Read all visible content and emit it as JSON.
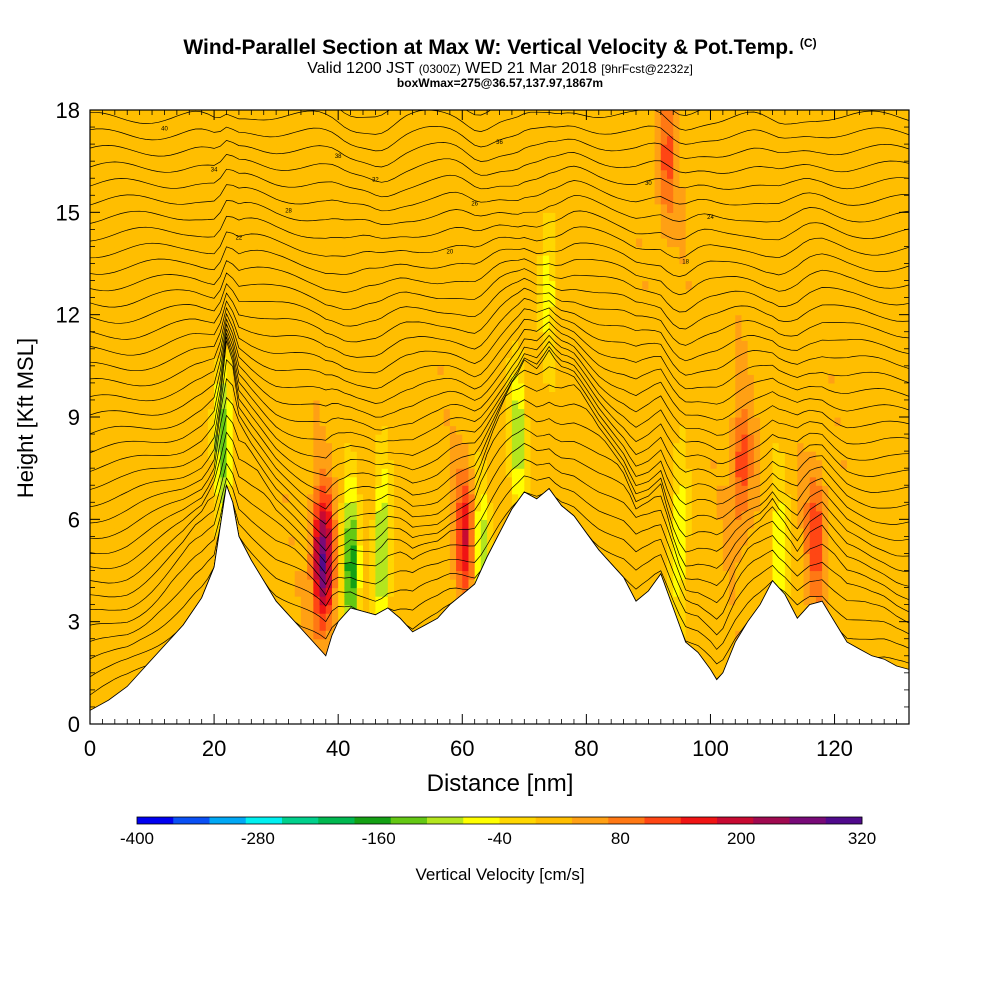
{
  "chart_data": {
    "type": "heatmap",
    "title": "Wind-Parallel Section at Max W: Vertical Velocity & Pot.Temp.",
    "title_mark": "(C)",
    "subtitle_main": "Valid 1200 JST",
    "subtitle_utc": "(0300Z)",
    "subtitle_date": "WED 21 Mar 2018",
    "subtitle_fcst": "[9hrFcst@2232z]",
    "subtitle2": "boxWmax=275@36.57,137.97,1867m",
    "xlabel": "Distance [nm]",
    "ylabel": "Height [Kft MSL]",
    "xlim": [
      0,
      132
    ],
    "ylim": [
      0,
      18
    ],
    "xticks": [
      0,
      20,
      40,
      60,
      80,
      100,
      120
    ],
    "yticks": [
      0,
      3,
      6,
      9,
      12,
      15,
      18
    ],
    "colorbar": {
      "label": "Vertical Velocity [cm/s]",
      "tick_labels": [
        "-400",
        "-280",
        "-160",
        "-40",
        "80",
        "200",
        "320"
      ],
      "tick_values": [
        -400,
        -280,
        -160,
        -40,
        80,
        200,
        320
      ],
      "range": [
        -400,
        320
      ],
      "colors": [
        "#0000f0",
        "#0a50f5",
        "#00a8f5",
        "#00f0f0",
        "#00d08c",
        "#00b850",
        "#14a014",
        "#64c814",
        "#b4e61e",
        "#ffff00",
        "#ffd700",
        "#ffbe00",
        "#ffa014",
        "#ff7814",
        "#ff4614",
        "#f01414",
        "#c80a32",
        "#a00a50",
        "#780a78",
        "#500a8c"
      ]
    },
    "terrain": {
      "x": [
        0,
        3,
        6,
        9,
        12,
        15,
        18,
        20,
        21,
        22,
        23,
        24,
        26,
        28,
        30,
        32,
        34,
        36,
        37,
        38,
        39,
        40,
        42,
        44,
        46,
        48,
        50,
        52,
        54,
        56,
        58,
        60,
        62,
        64,
        66,
        68,
        70,
        72,
        74,
        76,
        78,
        80,
        82,
        84,
        86,
        88,
        90,
        92,
        94,
        96,
        98,
        100,
        101,
        102,
        104,
        106,
        108,
        110,
        112,
        114,
        116,
        118,
        120,
        122,
        124,
        126,
        128,
        130,
        132
      ],
      "height": [
        0.4,
        0.7,
        1.1,
        1.7,
        2.3,
        2.9,
        3.7,
        4.6,
        5.8,
        7.0,
        6.5,
        5.5,
        4.8,
        4.2,
        3.6,
        3.2,
        2.8,
        2.4,
        2.2,
        2.0,
        2.6,
        3.0,
        3.4,
        3.3,
        3.2,
        3.4,
        3.1,
        2.7,
        2.9,
        3.1,
        3.5,
        3.8,
        4.1,
        4.9,
        5.6,
        6.3,
        6.8,
        6.6,
        6.9,
        6.4,
        6.1,
        5.6,
        5.1,
        4.7,
        4.3,
        3.6,
        3.9,
        4.4,
        3.4,
        2.4,
        2.1,
        1.6,
        1.3,
        1.5,
        2.4,
        3.0,
        3.5,
        4.2,
        3.8,
        3.1,
        3.5,
        3.6,
        3.0,
        2.4,
        2.2,
        2.0,
        1.9,
        1.7,
        1.6
      ]
    },
    "updraft_cores": [
      {
        "x": 37.5,
        "y": 4.8,
        "w_max": 275
      },
      {
        "x": 60.5,
        "y": 5.5,
        "w_max": 150
      },
      {
        "x": 105,
        "y": 7.5,
        "w_max": 110
      },
      {
        "x": 117,
        "y": 5.5,
        "w_max": 110
      },
      {
        "x": 93,
        "y": 16.5,
        "w_max": 90
      }
    ],
    "downdraft_cores": [
      {
        "x": 21.5,
        "y": 8.5,
        "w_min": -160
      },
      {
        "x": 42,
        "y": 4.5,
        "w_min": -200
      },
      {
        "x": 47,
        "y": 5.0,
        "w_min": -160
      },
      {
        "x": 63,
        "y": 4.8,
        "w_min": -130
      },
      {
        "x": 69,
        "y": 8.5,
        "w_min": -120
      },
      {
        "x": 74,
        "y": 13.0,
        "w_min": -80
      },
      {
        "x": 95,
        "y": 5.5,
        "w_min": -110
      },
      {
        "x": 111,
        "y": 4.8,
        "w_min": -100
      }
    ],
    "theta_contours": {
      "interval": 1,
      "low_value": 5,
      "count": 37,
      "labels": [
        "40",
        "38",
        "36",
        "34",
        "32",
        "30",
        "28",
        "26",
        "24",
        "22",
        "20",
        "18",
        "16",
        "14",
        "12",
        "10"
      ]
    }
  }
}
